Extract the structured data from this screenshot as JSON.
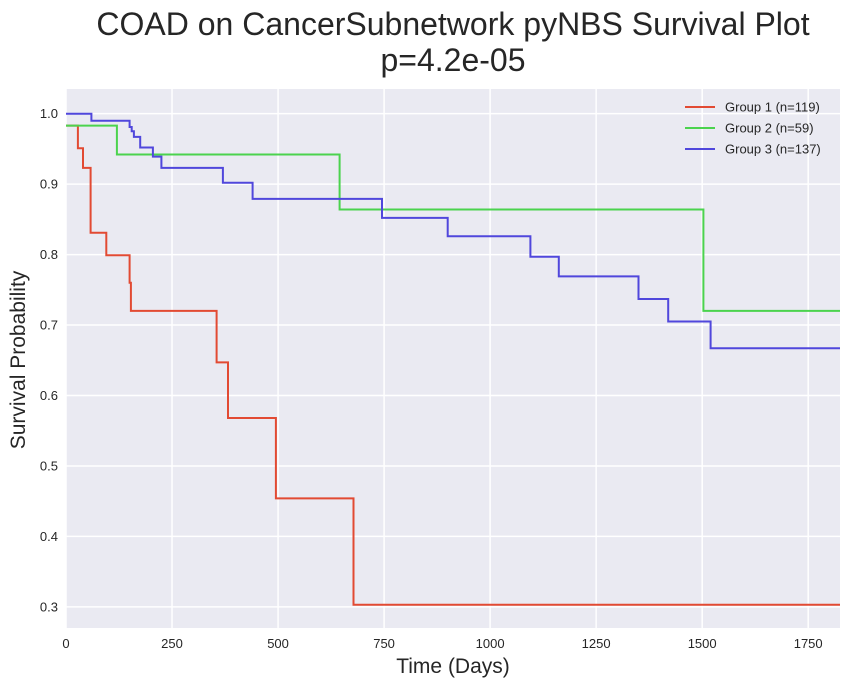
{
  "chart_data": {
    "type": "line",
    "step": true,
    "title": [
      "COAD on CancerSubnetwork pyNBS Survival Plot",
      "p=4.2e-05"
    ],
    "xlabel": "Time (Days)",
    "ylabel": "Survival Probability",
    "xlim": [
      0,
      1825
    ],
    "ylim": [
      0.27,
      1.035
    ],
    "xticks": [
      0,
      250,
      500,
      750,
      1000,
      1250,
      1500,
      1750
    ],
    "yticks": [
      0.3,
      0.4,
      0.5,
      0.6,
      0.7,
      0.8,
      0.9,
      1.0
    ],
    "xtick_labels": [
      "0",
      "250",
      "500",
      "750",
      "1000",
      "1250",
      "1500",
      "1750"
    ],
    "ytick_labels": [
      "0.3",
      "0.4",
      "0.5",
      "0.6",
      "0.7",
      "0.8",
      "0.9",
      "1.0"
    ],
    "grid": true,
    "background": "#EAEAF2",
    "legend_position": "top-right",
    "series": [
      {
        "name": "Group 1 (n=119)",
        "color": "#E24A33",
        "x": [
          0,
          28,
          40,
          58,
          95,
          150,
          153,
          355,
          382,
          495,
          678,
          1825
        ],
        "y": [
          0.983,
          0.951,
          0.923,
          0.831,
          0.799,
          0.76,
          0.72,
          0.647,
          0.568,
          0.454,
          0.303,
          0.303
        ]
      },
      {
        "name": "Group 2 (n=59)",
        "color": "#4BD34E",
        "x": [
          0,
          120,
          645,
          1503,
          1825
        ],
        "y": [
          0.983,
          0.942,
          0.864,
          0.72,
          0.72
        ]
      },
      {
        "name": "Group 3 (n=137)",
        "color": "#5047DC",
        "x": [
          0,
          60,
          150,
          155,
          160,
          175,
          205,
          225,
          370,
          440,
          745,
          900,
          1095,
          1162,
          1350,
          1420,
          1520,
          1825
        ],
        "y": [
          1.0,
          0.99,
          0.981,
          0.975,
          0.967,
          0.952,
          0.939,
          0.923,
          0.902,
          0.879,
          0.852,
          0.826,
          0.797,
          0.769,
          0.737,
          0.705,
          0.667,
          0.667
        ]
      }
    ]
  }
}
